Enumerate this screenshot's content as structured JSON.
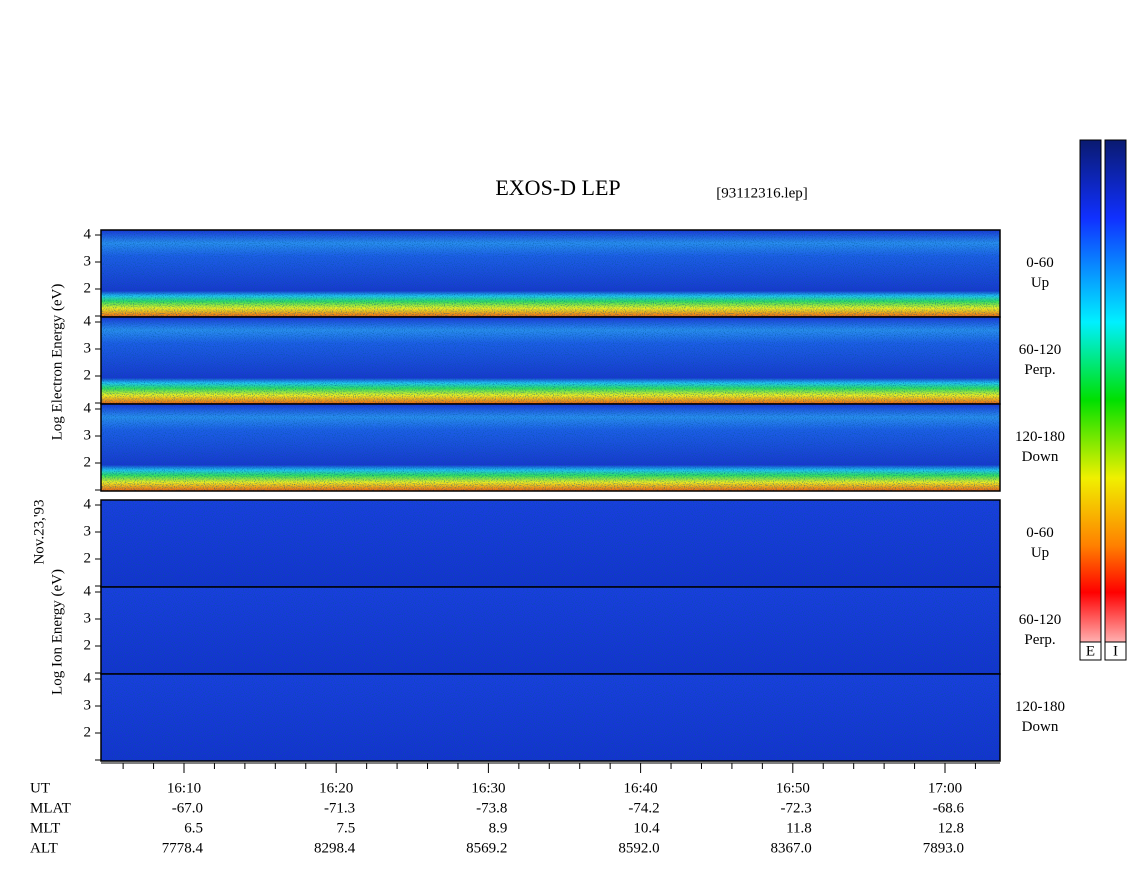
{
  "title": "EXOS-D LEP",
  "file": "[93112316.lep]",
  "date": "Nov.23,'93",
  "electron_label": "Log Electron Energy (eV)",
  "ion_label": "Log Ion Energy (eV)",
  "energy_ticks": [
    2,
    3,
    4
  ],
  "panels": [
    {
      "pitch": "0-60",
      "direction": "Up"
    },
    {
      "pitch": "60-120",
      "direction": "Perp."
    },
    {
      "pitch": "120-180",
      "direction": "Down"
    },
    {
      "pitch": "0-60",
      "direction": "Up"
    },
    {
      "pitch": "60-120",
      "direction": "Perp."
    },
    {
      "pitch": "120-180",
      "direction": "Down"
    }
  ],
  "rows": [
    {
      "name": "UT",
      "values": [
        "16:10",
        "16:20",
        "16:30",
        "16:40",
        "16:50",
        "17:00"
      ]
    },
    {
      "name": "MLAT",
      "values": [
        "-67.0",
        "-71.3",
        "-73.8",
        "-74.2",
        "-72.3",
        "-68.6"
      ]
    },
    {
      "name": "MLT",
      "values": [
        "6.5",
        "7.5",
        "8.9",
        "10.4",
        "11.8",
        "12.8"
      ]
    },
    {
      "name": "ALT",
      "values": [
        "7778.4",
        "8298.4",
        "8569.2",
        "8592.0",
        "8367.0",
        "7893.0"
      ]
    }
  ],
  "colorbar_labels": [
    "E",
    "I"
  ]
}
